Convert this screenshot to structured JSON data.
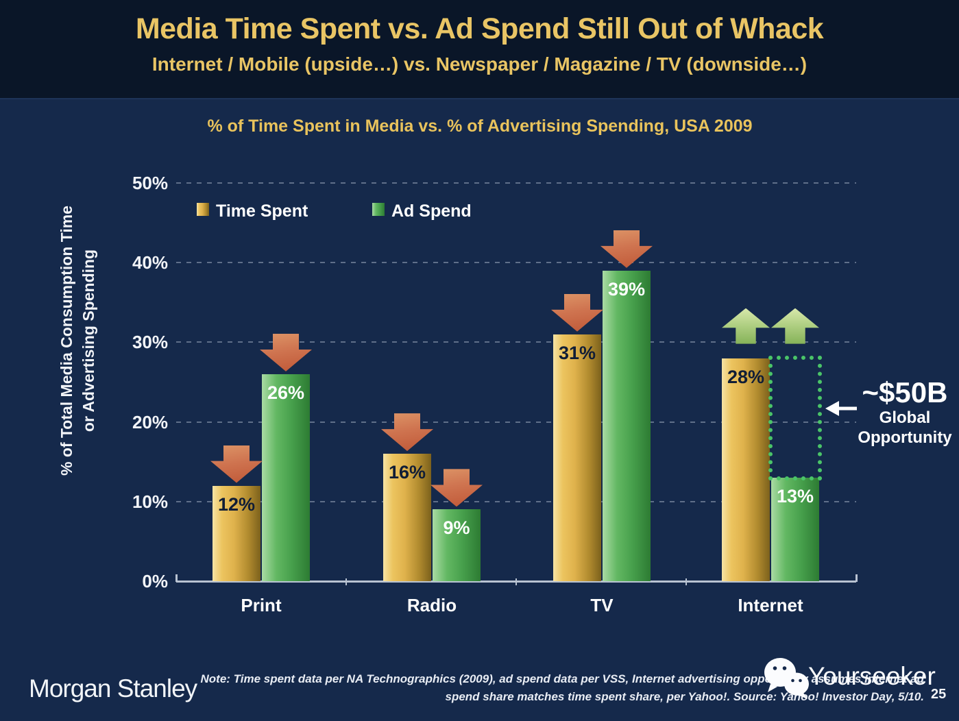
{
  "header": {
    "title": "Media Time Spent vs. Ad Spend Still Out of Whack",
    "subtitle": "Internet / Mobile (upside…) vs. Newspaper / Magazine / TV (downside…)"
  },
  "chart_data": {
    "type": "bar",
    "title": "% of Time Spent in Media vs. % of Advertising Spending, USA 2009",
    "categories": [
      "Print",
      "Radio",
      "TV",
      "Internet"
    ],
    "series": [
      {
        "name": "Time Spent",
        "values": [
          12,
          16,
          31,
          28
        ],
        "value_labels": [
          "12%",
          "16%",
          "31%",
          "28%"
        ],
        "color": "#dfb24c",
        "label_color": "#101d36"
      },
      {
        "name": "Ad Spend",
        "values": [
          26,
          9,
          39,
          13
        ],
        "value_labels": [
          "26%",
          "9%",
          "39%",
          "13%"
        ],
        "color": "#47a04c",
        "label_color": "#ffffff"
      }
    ],
    "ylabel_line1": "% of Total Media Consumption Time",
    "ylabel_line2": "or Advertising Spending",
    "yticks": [
      {
        "label": "0%",
        "value": 0
      },
      {
        "label": "10%",
        "value": 10
      },
      {
        "label": "20%",
        "value": 20
      },
      {
        "label": "30%",
        "value": 30
      },
      {
        "label": "40%",
        "value": 40
      },
      {
        "label": "50%",
        "value": 50
      }
    ],
    "ylim": [
      0,
      50
    ],
    "grid": "horizontal-dashed",
    "legend_position": "top-left-inside",
    "arrows": [
      {
        "category": "Print",
        "series": "Time Spent",
        "direction": "down"
      },
      {
        "category": "Print",
        "series": "Ad Spend",
        "direction": "down"
      },
      {
        "category": "Radio",
        "series": "Time Spent",
        "direction": "down"
      },
      {
        "category": "Radio",
        "series": "Ad Spend",
        "direction": "down"
      },
      {
        "category": "TV",
        "series": "Time Spent",
        "direction": "down"
      },
      {
        "category": "TV",
        "series": "Ad Spend",
        "direction": "down"
      },
      {
        "category": "Internet",
        "series": "Time Spent",
        "direction": "up"
      },
      {
        "category": "Internet",
        "series": "Ad Spend",
        "direction": "up"
      }
    ],
    "opportunity_box": {
      "category": "Internet",
      "series": "Ad Spend",
      "from_value": 13,
      "to_value": 28
    },
    "annotation": {
      "value": "~$50B",
      "line1": "Global",
      "line2": "Opportunity"
    }
  },
  "footer": {
    "logo": "Morgan Stanley",
    "note_line1": "Note: Time spent data per NA Technographics (2009), ad spend data per VSS, Internet advertising opportunity assumes Internet ad",
    "note_line2": "spend share matches time spent share, per Yahoo!. Source: Yahoo! Investor Day, 5/10.",
    "watermark": "Yourseeker",
    "page_number": "25"
  },
  "colors": {
    "background": "#15294b",
    "header_band": "#0a1628",
    "title_gold": "#e9c565",
    "bar_gold": "#dfb24c",
    "bar_green": "#47a04c",
    "arrow_down_red": "#cf7450",
    "arrow_up_green": "#b1d084",
    "opportunity_dotted_green": "#4ac468",
    "axis_gray": "#b9c3d2"
  }
}
